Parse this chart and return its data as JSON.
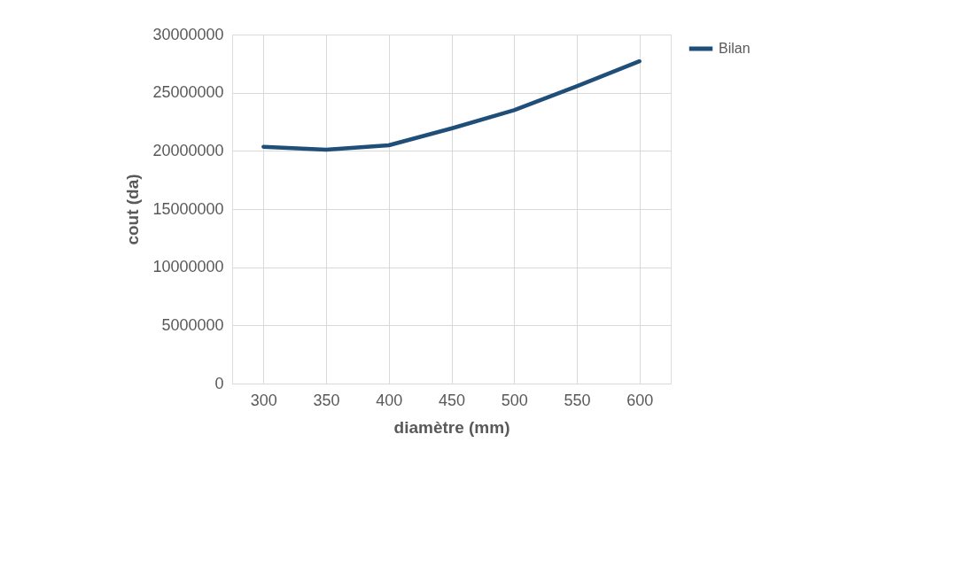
{
  "chart_data": {
    "type": "line",
    "xlabel": "diamètre (mm)",
    "ylabel": "cout (da)",
    "categories": [
      "300",
      "350",
      "400",
      "450",
      "500",
      "550",
      "600"
    ],
    "series": [
      {
        "name": "Bilan",
        "color": "#1f4e79",
        "values": [
          20350000,
          20100000,
          20480000,
          21930000,
          23500000,
          25550000,
          27700000
        ]
      }
    ],
    "ylim": [
      0,
      30000000
    ],
    "yticks": [
      0,
      5000000,
      10000000,
      15000000,
      20000000,
      25000000,
      30000000
    ],
    "grid": true,
    "legend": "right",
    "marker": "none",
    "line_style": "solid"
  }
}
